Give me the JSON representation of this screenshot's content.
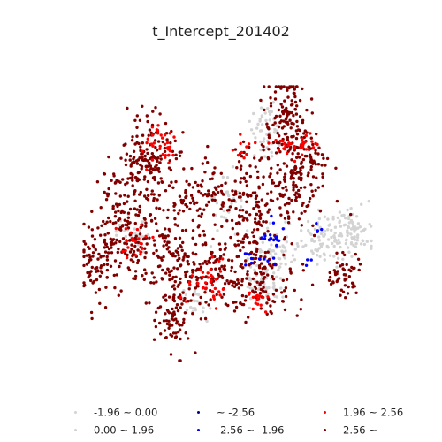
{
  "chart_data": {
    "type": "scatter",
    "title": "t_Intercept_201402",
    "xlabel": "",
    "ylabel": "",
    "axes_visible": false,
    "grid": false,
    "legend_position": "bottom",
    "classes": [
      {
        "key": "c_neg_low",
        "label": "-1.96 ~ 0.00",
        "color": "#d3d3d3"
      },
      {
        "key": "c_pos_low",
        "label": "0.00 ~ 1.96",
        "color": "#d3d3d3"
      },
      {
        "key": "c_neg_high",
        "label": "~ -2.56",
        "color": "#00008b"
      },
      {
        "key": "c_neg_mid",
        "label": "-2.56 ~ -1.96",
        "color": "#0000ff"
      },
      {
        "key": "c_pos_mid",
        "label": "1.96 ~ 2.56",
        "color": "#ff0000"
      },
      {
        "key": "c_pos_high",
        "label": "2.56 ~",
        "color": "#800000"
      }
    ],
    "regions": [
      {
        "cls": "c_pos_high",
        "x": 0.05,
        "y": 0.64,
        "sx": 0.035,
        "sy": 0.07,
        "n": 90,
        "seed": 11
      },
      {
        "cls": "c_pos_high",
        "x": 0.15,
        "y": 0.5,
        "sx": 0.06,
        "sy": 0.1,
        "n": 160,
        "seed": 12
      },
      {
        "cls": "c_pos_high",
        "x": 0.22,
        "y": 0.27,
        "sx": 0.06,
        "sy": 0.08,
        "n": 170,
        "seed": 13
      },
      {
        "cls": "c_pos_high",
        "x": 0.3,
        "y": 0.6,
        "sx": 0.05,
        "sy": 0.1,
        "n": 110,
        "seed": 14
      },
      {
        "cls": "c_pos_high",
        "x": 0.3,
        "y": 0.86,
        "sx": 0.03,
        "sy": 0.06,
        "n": 70,
        "seed": 15
      },
      {
        "cls": "c_pos_high",
        "x": 0.42,
        "y": 0.4,
        "sx": 0.05,
        "sy": 0.08,
        "n": 90,
        "seed": 16
      },
      {
        "cls": "c_pos_high",
        "x": 0.44,
        "y": 0.68,
        "sx": 0.06,
        "sy": 0.07,
        "n": 120,
        "seed": 17
      },
      {
        "cls": "c_pos_high",
        "x": 0.58,
        "y": 0.45,
        "sx": 0.05,
        "sy": 0.12,
        "n": 160,
        "seed": 18
      },
      {
        "cls": "c_pos_high",
        "x": 0.7,
        "y": 0.13,
        "sx": 0.04,
        "sy": 0.09,
        "n": 130,
        "seed": 19
      },
      {
        "cls": "c_pos_high",
        "x": 0.73,
        "y": 0.37,
        "sx": 0.05,
        "sy": 0.08,
        "n": 110,
        "seed": 20
      },
      {
        "cls": "c_pos_high",
        "x": 0.62,
        "y": 0.72,
        "sx": 0.07,
        "sy": 0.06,
        "n": 110,
        "seed": 21
      },
      {
        "cls": "c_pos_high",
        "x": 0.9,
        "y": 0.68,
        "sx": 0.03,
        "sy": 0.04,
        "n": 50,
        "seed": 22
      },
      {
        "cls": "c_pos_high",
        "x": 0.8,
        "y": 0.27,
        "sx": 0.03,
        "sy": 0.05,
        "n": 40,
        "seed": 23
      },
      {
        "cls": "c_neg_low",
        "x": 0.92,
        "y": 0.52,
        "sx": 0.05,
        "sy": 0.04,
        "n": 90,
        "seed": 31
      },
      {
        "cls": "c_neg_low",
        "x": 0.66,
        "y": 0.6,
        "sx": 0.05,
        "sy": 0.05,
        "n": 70,
        "seed": 32
      },
      {
        "cls": "c_neg_low",
        "x": 0.63,
        "y": 0.15,
        "sx": 0.03,
        "sy": 0.06,
        "n": 50,
        "seed": 33
      },
      {
        "cls": "c_neg_low",
        "x": 0.18,
        "y": 0.53,
        "sx": 0.03,
        "sy": 0.03,
        "n": 30,
        "seed": 34
      },
      {
        "cls": "c_pos_low",
        "x": 0.83,
        "y": 0.56,
        "sx": 0.04,
        "sy": 0.04,
        "n": 60,
        "seed": 35
      },
      {
        "cls": "c_pos_low",
        "x": 0.63,
        "y": 0.72,
        "sx": 0.04,
        "sy": 0.04,
        "n": 50,
        "seed": 36
      },
      {
        "cls": "c_pos_low",
        "x": 0.5,
        "y": 0.4,
        "sx": 0.03,
        "sy": 0.05,
        "n": 30,
        "seed": 37
      },
      {
        "cls": "c_pos_low",
        "x": 0.38,
        "y": 0.78,
        "sx": 0.03,
        "sy": 0.03,
        "n": 25,
        "seed": 38
      },
      {
        "cls": "c_pos_mid",
        "x": 0.27,
        "y": 0.22,
        "sx": 0.03,
        "sy": 0.04,
        "n": 35,
        "seed": 41
      },
      {
        "cls": "c_pos_mid",
        "x": 0.74,
        "y": 0.22,
        "sx": 0.04,
        "sy": 0.02,
        "n": 35,
        "seed": 42
      },
      {
        "cls": "c_pos_mid",
        "x": 0.44,
        "y": 0.72,
        "sx": 0.04,
        "sy": 0.04,
        "n": 35,
        "seed": 43
      },
      {
        "cls": "c_pos_mid",
        "x": 0.18,
        "y": 0.57,
        "sx": 0.03,
        "sy": 0.03,
        "n": 25,
        "seed": 44
      },
      {
        "cls": "c_pos_mid",
        "x": 0.6,
        "y": 0.78,
        "sx": 0.03,
        "sy": 0.02,
        "n": 15,
        "seed": 45
      },
      {
        "cls": "c_pos_mid",
        "x": 0.55,
        "y": 0.22,
        "sx": 0.02,
        "sy": 0.02,
        "n": 10,
        "seed": 46
      },
      {
        "cls": "c_neg_mid",
        "x": 0.65,
        "y": 0.53,
        "sx": 0.02,
        "sy": 0.025,
        "n": 16,
        "seed": 51
      },
      {
        "cls": "c_neg_mid",
        "x": 0.6,
        "y": 0.63,
        "sx": 0.025,
        "sy": 0.015,
        "n": 10,
        "seed": 52
      },
      {
        "cls": "c_neg_mid",
        "x": 0.82,
        "y": 0.51,
        "sx": 0.01,
        "sy": 0.01,
        "n": 4,
        "seed": 53
      },
      {
        "cls": "c_neg_mid",
        "x": 0.78,
        "y": 0.64,
        "sx": 0.01,
        "sy": 0.01,
        "n": 3,
        "seed": 54
      }
    ]
  }
}
